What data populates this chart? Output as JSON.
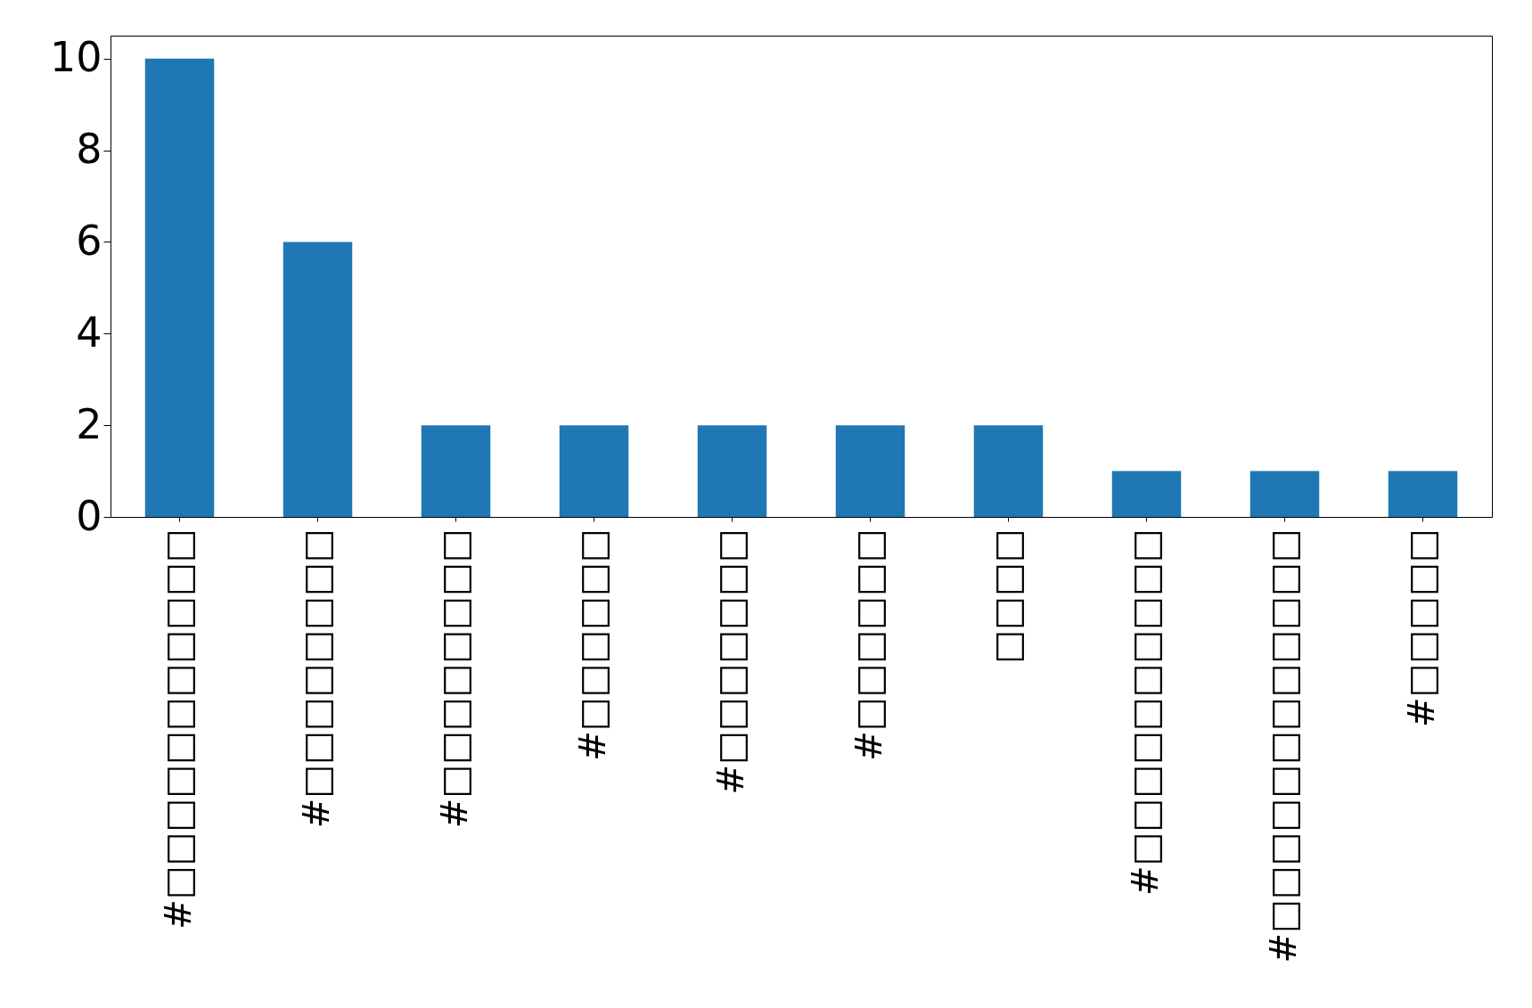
{
  "chart_data": {
    "type": "bar",
    "categories": [
      "#□□□□□□□□□□□",
      "#□□□□□□□□",
      "#□□□□□□□□",
      "#□□□□□□",
      "#□□□□□□□",
      "#□□□□□□",
      "□□□□",
      "#□□□□□□□□□□",
      "#□□□□□□□□□□□□",
      "#□□□□□"
    ],
    "values": [
      10,
      6,
      2,
      2,
      2,
      2,
      2,
      1,
      1,
      1
    ],
    "color": "#1f77b4",
    "ylim": [
      0,
      10.5
    ],
    "yticks": [
      0,
      2,
      4,
      6,
      8,
      10
    ],
    "grid": false
  }
}
